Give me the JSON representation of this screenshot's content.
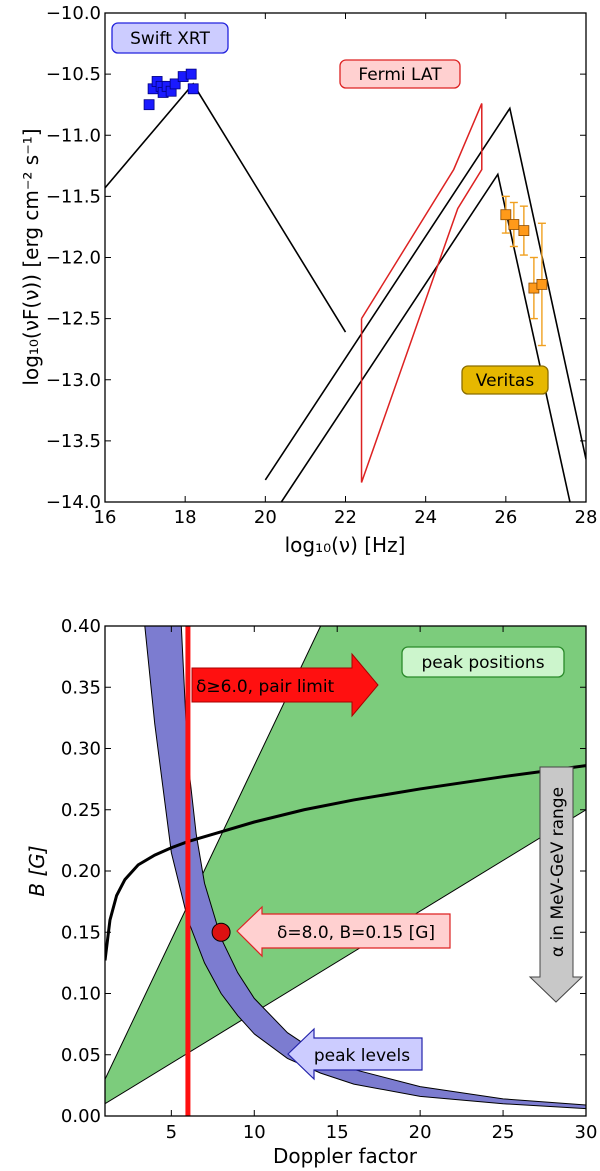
{
  "chart_data": [
    {
      "type": "line",
      "ylabel": "log₁₀(νF(ν)) [erg cm⁻² s⁻¹]",
      "xlabel": "log₁₀(ν) [Hz]",
      "xlim": [
        16,
        28
      ],
      "ylim": [
        -14.0,
        -10.0
      ],
      "x_ticks": [
        "16",
        "18",
        "20",
        "22",
        "24",
        "26",
        "28"
      ],
      "y_ticks": [
        "−10.0",
        "−10.5",
        "−11.0",
        "−11.5",
        "−12.0",
        "−12.5",
        "−13.0",
        "−13.5",
        "−14.0"
      ],
      "x_tick_values": [
        16,
        18,
        20,
        22,
        24,
        26,
        28
      ],
      "y_tick_values": [
        -10.0,
        -10.5,
        -11.0,
        -11.5,
        -12.0,
        -12.5,
        -13.0,
        -13.5,
        -14.0
      ],
      "annotations": {
        "swift": "Swift XRT",
        "fermi": "Fermi LAT",
        "veritas": "Veritas"
      },
      "series": [
        {
          "key": "model_sync",
          "color": "#000000",
          "x": [
            16.0,
            18.2,
            22.0
          ],
          "y": [
            -11.43,
            -10.58,
            -12.61
          ]
        },
        {
          "key": "model_ic_1",
          "color": "#000000",
          "x": [
            20.0,
            26.1,
            28.0
          ],
          "y": [
            -13.82,
            -10.78,
            -13.65
          ]
        },
        {
          "key": "model_ic_2",
          "color": "#000000",
          "x": [
            20.4,
            25.8,
            27.6
          ],
          "y": [
            -14.0,
            -11.32,
            -14.0
          ]
        },
        {
          "key": "fermi_bowtie",
          "color": "#dd2222",
          "x": [
            22.4,
            24.7,
            25.4,
            25.4,
            24.8,
            22.4,
            22.4
          ],
          "y": [
            -12.5,
            -11.28,
            -10.74,
            -11.28,
            -11.6,
            -13.84,
            -12.5
          ]
        }
      ],
      "swift_points": [
        {
          "x": 17.1,
          "y": -10.75
        },
        {
          "x": 17.2,
          "y": -10.62
        },
        {
          "x": 17.3,
          "y": -10.56
        },
        {
          "x": 17.4,
          "y": -10.6
        },
        {
          "x": 17.45,
          "y": -10.65
        },
        {
          "x": 17.55,
          "y": -10.6
        },
        {
          "x": 17.65,
          "y": -10.64
        },
        {
          "x": 17.75,
          "y": -10.58
        },
        {
          "x": 17.95,
          "y": -10.52
        },
        {
          "x": 18.15,
          "y": -10.5
        },
        {
          "x": 18.2,
          "y": -10.62
        }
      ],
      "veritas_points": [
        {
          "x": 26.0,
          "y": -11.65,
          "yerr": 0.15
        },
        {
          "x": 26.2,
          "y": -11.73,
          "yerr": 0.18
        },
        {
          "x": 26.45,
          "y": -11.78,
          "yerr": 0.2
        },
        {
          "x": 26.7,
          "y": -12.25,
          "yerr": 0.25
        },
        {
          "x": 26.9,
          "y": -12.22,
          "yerr": 0.5
        }
      ]
    },
    {
      "type": "area",
      "xlabel": "Doppler factor",
      "ylabel": "B [G]",
      "xlim": [
        1,
        30
      ],
      "ylim": [
        0.0,
        0.4
      ],
      "x_ticks": [
        "5",
        "10",
        "15",
        "20",
        "25",
        "30"
      ],
      "y_ticks": [
        "0.00",
        "0.05",
        "0.10",
        "0.15",
        "0.20",
        "0.25",
        "0.30",
        "0.35",
        "0.40"
      ],
      "x_tick_values": [
        5,
        10,
        15,
        20,
        25,
        30
      ],
      "y_tick_values": [
        0.0,
        0.05,
        0.1,
        0.15,
        0.2,
        0.25,
        0.3,
        0.35,
        0.4
      ],
      "annotations": {
        "peak_positions": "peak positions",
        "pair_limit": "δ≥6.0, pair limit",
        "alpha": "α in MeV-GeV range",
        "point": "δ=8.0, B=0.15 [G]",
        "peak_levels": "peak levels"
      },
      "pair_limit_delta": 6.0,
      "solution": {
        "delta": 8.0,
        "B": 0.15
      },
      "peak_positions_region": {
        "upper": {
          "x": [
            1,
            14
          ],
          "y": [
            0.03,
            0.4
          ]
        },
        "lower": {
          "x": [
            1,
            30
          ],
          "y": [
            0.01,
            0.25
          ]
        },
        "right_top": {
          "x": [
            14,
            30
          ],
          "y": [
            0.4,
            0.4
          ]
        }
      },
      "alpha_curve": {
        "x": [
          1,
          1.3,
          1.7,
          2.2,
          3,
          4,
          5,
          6,
          8,
          10,
          13,
          16,
          20,
          25,
          30
        ],
        "y": [
          0.127,
          0.16,
          0.18,
          0.193,
          0.205,
          0.213,
          0.219,
          0.224,
          0.232,
          0.24,
          0.25,
          0.258,
          0.267,
          0.277,
          0.286
        ]
      },
      "peak_levels_band": {
        "upper": {
          "x": [
            5.6,
            6,
            6.5,
            7,
            8,
            9,
            10,
            12,
            14,
            16,
            20,
            25,
            30
          ],
          "y": [
            0.4,
            0.29,
            0.23,
            0.19,
            0.145,
            0.117,
            0.096,
            0.068,
            0.05,
            0.038,
            0.024,
            0.014,
            0.009
          ]
        },
        "lower": {
          "x": [
            3.4,
            4,
            5,
            6,
            7,
            8,
            9,
            10,
            12,
            14,
            16,
            20,
            25,
            30
          ],
          "y": [
            0.4,
            0.32,
            0.215,
            0.16,
            0.125,
            0.1,
            0.082,
            0.067,
            0.047,
            0.035,
            0.026,
            0.016,
            0.01,
            0.006
          ]
        }
      }
    }
  ]
}
